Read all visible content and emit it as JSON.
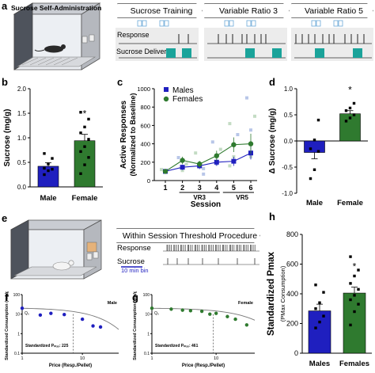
{
  "figure": {
    "panel_labels": [
      "a",
      "b",
      "c",
      "d",
      "e",
      "f",
      "g",
      "h"
    ],
    "a": {
      "chamber_title": "Sucrose Self-Administration",
      "phases": [
        "Sucrose Training",
        "Variable Ratio 3",
        "Variable Ratio 5"
      ],
      "row_labels": [
        "Response",
        "Sucrose Delivery"
      ],
      "delivery_color": "#1aa39a"
    },
    "e": {
      "procedure_title": "Within Session Threshold Procedure",
      "row_labels": [
        "Response",
        "Sucrose"
      ],
      "bin_label": "10 min bin"
    },
    "colors": {
      "male": "#1f1fbf",
      "female": "#2f7a2f"
    }
  },
  "chart_data": [
    {
      "id": "b",
      "type": "bar",
      "categories": [
        "Male",
        "Female"
      ],
      "values": [
        0.42,
        0.94
      ],
      "errors": [
        0.07,
        0.13
      ],
      "points": [
        [
          0.25,
          0.33,
          0.36,
          0.38,
          0.47,
          0.58,
          0.68
        ],
        [
          0.27,
          0.45,
          0.6,
          0.72,
          0.82,
          0.97,
          1.1,
          1.22,
          1.38,
          1.52
        ]
      ],
      "ylabel": "Sucrose (mg/g)",
      "ylim": [
        0,
        2.0
      ],
      "yticks": [
        "0.0",
        "0.5",
        "1.0",
        "1.5",
        "2.0"
      ],
      "annotation": "*"
    },
    {
      "id": "c",
      "type": "line",
      "x": [
        1,
        2,
        3,
        4,
        5,
        6
      ],
      "xtick_labels": [
        "1",
        "2",
        "3",
        "4",
        "5",
        "6"
      ],
      "series": [
        {
          "name": "Males",
          "values": [
            100,
            145,
            160,
            200,
            210,
            300
          ],
          "errors": [
            20,
            30,
            35,
            40,
            50,
            70
          ]
        },
        {
          "name": "Females",
          "values": [
            100,
            220,
            180,
            270,
            390,
            400
          ],
          "errors": [
            25,
            40,
            35,
            55,
            80,
            110
          ]
        }
      ],
      "ylabel": "Active Responses (Normalized to Baseline)",
      "xlabel": "Session",
      "ylim": [
        0,
        1000
      ],
      "yticks": [
        "0",
        "200",
        "400",
        "600",
        "800",
        "1000"
      ],
      "phase_labels": [
        "VR3",
        "VR5"
      ]
    },
    {
      "id": "d",
      "type": "bar",
      "categories": [
        "Male",
        "Female"
      ],
      "values": [
        -0.22,
        0.52
      ],
      "errors": [
        0.12,
        0.06
      ],
      "points": [
        [
          -0.72,
          -0.55,
          -0.2,
          -0.15,
          0.02,
          0.4
        ],
        [
          0.38,
          0.44,
          0.5,
          0.58,
          0.63,
          0.72
        ]
      ],
      "ylabel": "Δ Sucrose (mg/g)",
      "ylim": [
        -1.0,
        1.0
      ],
      "yticks": [
        "-1.0",
        "-0.5",
        "0.0",
        "0.5",
        "1.0"
      ],
      "annotation": "*"
    },
    {
      "id": "f",
      "type": "scatter",
      "points": [
        [
          1,
          20
        ],
        [
          2,
          9
        ],
        [
          3,
          11
        ],
        [
          5,
          9.5
        ],
        [
          10,
          5.5
        ],
        [
          15,
          2.5
        ],
        [
          20,
          2.2
        ]
      ],
      "legend_label": "Male",
      "q0_label": "Q₀",
      "annotation": "Standardized Pₘₐₓ: 225",
      "pmax": 7,
      "ylabel": "Standardized Consumption (mg/g)",
      "xlabel": "Price (Resp./Pellet)",
      "xticks": [
        "1",
        "10"
      ],
      "yticks": [
        "0.1",
        "1",
        "10",
        "100"
      ],
      "point_color": "#1f1fbf"
    },
    {
      "id": "g",
      "type": "scatter",
      "points": [
        [
          1,
          20
        ],
        [
          2,
          18
        ],
        [
          3,
          16
        ],
        [
          4,
          15
        ],
        [
          6,
          14
        ],
        [
          8,
          10
        ],
        [
          10,
          11
        ],
        [
          15,
          7.5
        ],
        [
          20,
          5.5
        ],
        [
          30,
          2.8
        ]
      ],
      "legend_label": "Female",
      "q0_label": "Q₀",
      "annotation": "Standardized Pₘₐₓ: 461",
      "pmax": 9,
      "ylabel": "Standardized Consumption (mg/g)",
      "xlabel": "Price (Resp./Pellet)",
      "xticks": [
        "1",
        "10"
      ],
      "yticks": [
        "0.1",
        "1",
        "10",
        "100"
      ],
      "point_color": "#2f7a2f"
    },
    {
      "id": "h",
      "type": "bar",
      "categories": [
        "Males",
        "Females"
      ],
      "values": [
        285,
        405
      ],
      "errors": [
        45,
        40
      ],
      "points": [
        [
          170,
          210,
          250,
          300,
          340,
          410,
          460
        ],
        [
          190,
          280,
          330,
          360,
          390,
          430,
          470,
          520,
          560,
          650
        ]
      ],
      "ylabel": "Standardized Pmax",
      "ylabel_sub": "(PMax Consumption)",
      "ylim": [
        0,
        800
      ],
      "yticks": [
        "0",
        "200",
        "400",
        "600",
        "800"
      ],
      "annotation": "*"
    }
  ]
}
